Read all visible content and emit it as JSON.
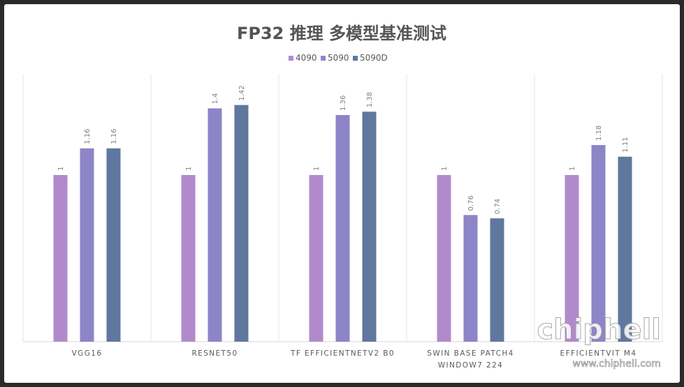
{
  "chart_data": {
    "type": "bar",
    "title": "FP32 推理 多模型基准测试",
    "categories": [
      "VGG16",
      "RESNET50",
      "TF EFFICIENTNETV2 B0",
      "SWIN BASE PATCH4 WINDOW7 224",
      "EFFICIENTVIT M4"
    ],
    "series": [
      {
        "name": "4090",
        "values": [
          1,
          1,
          1,
          1,
          1
        ],
        "labels": [
          "1",
          "1",
          "1",
          "1",
          "1"
        ],
        "color": "#b28acb"
      },
      {
        "name": "5090",
        "values": [
          1.16,
          1.4,
          1.36,
          0.76,
          1.18
        ],
        "labels": [
          "1.16",
          "1.4",
          "1.36",
          "0.76",
          "1.18"
        ],
        "color": "#8d85c7"
      },
      {
        "name": "5090D",
        "values": [
          1.16,
          1.42,
          1.38,
          0.74,
          1.11
        ],
        "labels": [
          "1.16",
          "1.42",
          "1.38",
          "0.74",
          "1.11"
        ],
        "color": "#5f789e"
      }
    ],
    "ylim": [
      0,
      1.6
    ],
    "xlabel": "",
    "ylabel": "",
    "grid": "vertical category separators",
    "legend": "top-center"
  },
  "watermark": {
    "logo_text": "chiphell",
    "url": "www.chiphell.com"
  }
}
